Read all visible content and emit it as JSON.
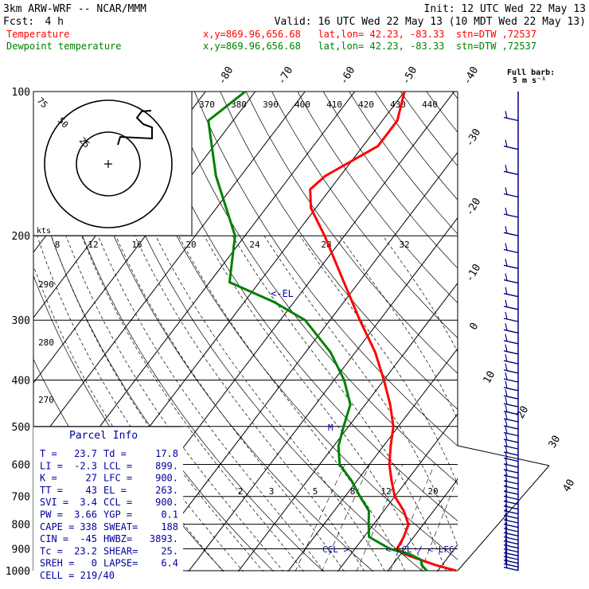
{
  "header": {
    "line1_left": "3km ARW-WRF -- NCAR/MMM",
    "line1_right": "Init: 12 UTC Wed 22 May 13",
    "fcst_label": "Fcst:",
    "fcst_value": "4 h",
    "valid": "Valid: 16 UTC Wed 22 May 13 (10 MDT Wed 22 May 13)"
  },
  "legend": [
    {
      "label": "Temperature",
      "location": "x,y=869.96,656.68   lat,lon= 42.23, -83.33  stn=DTW ,72537",
      "color": "#ff0000"
    },
    {
      "label": "Dewpoint temperature",
      "location": "x,y=869.96,656.68   lat,lon= 42.23, -83.33  stn=DTW ,72537",
      "color": "#008000"
    }
  ],
  "barb_key": {
    "line1": "Full barb:",
    "line2": "5 m s⁻¹"
  },
  "chart_data": {
    "type": "line",
    "title": "Skew-T log-P sounding",
    "pressure_ticks": [
      100,
      200,
      300,
      400,
      500,
      600,
      700,
      800,
      900,
      1000
    ],
    "temp_ticks": [
      -80,
      -70,
      -60,
      -50,
      -40,
      -30,
      -20,
      -10,
      0,
      10,
      20,
      30,
      40
    ],
    "theta_labels_top": [
      "370",
      "380",
      "390",
      "400",
      "410",
      "420",
      "430",
      "440"
    ],
    "theta_labels_left": [
      "290",
      "280",
      "270"
    ],
    "hodograph": {
      "ring_labels": [
        "75",
        "50",
        "25"
      ],
      "units": "kts"
    },
    "mixing_ratio_labels_top": [
      "8",
      "12",
      "16",
      "20",
      "24",
      "28",
      "32"
    ],
    "mixing_ratio_labels_bottom": [
      "2",
      "3",
      "5",
      "8",
      "12",
      "20"
    ],
    "level_markers": {
      "el": "<-EL",
      "m": "M",
      "ccl_lcl_lfc": "CCL >       < LCL / < LFC"
    },
    "series": [
      {
        "name": "Temperature",
        "color": "#ff0000",
        "points": [
          {
            "p": 1000,
            "t": 23.7
          },
          {
            "p": 975,
            "t": 19
          },
          {
            "p": 950,
            "t": 15
          },
          {
            "p": 925,
            "t": 11
          },
          {
            "p": 900,
            "t": 8.5
          },
          {
            "p": 850,
            "t": 8
          },
          {
            "p": 800,
            "t": 7
          },
          {
            "p": 750,
            "t": 4
          },
          {
            "p": 700,
            "t": 0
          },
          {
            "p": 650,
            "t": -3
          },
          {
            "p": 600,
            "t": -6
          },
          {
            "p": 550,
            "t": -8.5
          },
          {
            "p": 500,
            "t": -11
          },
          {
            "p": 450,
            "t": -15
          },
          {
            "p": 400,
            "t": -20
          },
          {
            "p": 350,
            "t": -26
          },
          {
            "p": 300,
            "t": -34
          },
          {
            "p": 250,
            "t": -43
          },
          {
            "p": 200,
            "t": -54
          },
          {
            "p": 175,
            "t": -61
          },
          {
            "p": 160,
            "t": -64
          },
          {
            "p": 150,
            "t": -63
          },
          {
            "p": 130,
            "t": -57
          },
          {
            "p": 115,
            "t": -57
          },
          {
            "p": 100,
            "t": -60
          }
        ]
      },
      {
        "name": "Dewpoint temperature",
        "color": "#008000",
        "points": [
          {
            "p": 1000,
            "t": 17.8
          },
          {
            "p": 975,
            "t": 16
          },
          {
            "p": 950,
            "t": 15
          },
          {
            "p": 925,
            "t": 12
          },
          {
            "p": 900,
            "t": 7
          },
          {
            "p": 850,
            "t": 1
          },
          {
            "p": 800,
            "t": -1
          },
          {
            "p": 750,
            "t": -3
          },
          {
            "p": 700,
            "t": -7
          },
          {
            "p": 650,
            "t": -11
          },
          {
            "p": 600,
            "t": -16
          },
          {
            "p": 550,
            "t": -19
          },
          {
            "p": 500,
            "t": -21
          },
          {
            "p": 450,
            "t": -23
          },
          {
            "p": 400,
            "t": -28
          },
          {
            "p": 350,
            "t": -35
          },
          {
            "p": 300,
            "t": -45
          },
          {
            "p": 275,
            "t": -54
          },
          {
            "p": 250,
            "t": -66
          },
          {
            "p": 200,
            "t": -72
          },
          {
            "p": 150,
            "t": -85
          },
          {
            "p": 115,
            "t": -95
          },
          {
            "p": 100,
            "t": -92
          }
        ]
      }
    ],
    "parcel_info": {
      "title": "Parcel Info",
      "rows": [
        [
          "T  =",
          "23.7",
          "Td  =",
          "17.8"
        ],
        [
          "LI =",
          "-2.3",
          "LCL =",
          "899."
        ],
        [
          "K  =",
          "27",
          "LFC =",
          "900."
        ],
        [
          "TT =",
          "43",
          "EL  =",
          "263."
        ],
        [
          "SVI =",
          "3.4",
          "CCL =",
          "900."
        ],
        [
          "PW =",
          "3.66",
          "YGP =",
          "0.1"
        ],
        [
          "CAPE =",
          "338",
          "SWEAT=",
          "188"
        ],
        [
          "CIN =",
          "-45",
          "HWBZ=",
          "3893."
        ],
        [
          "Tc =",
          "23.2",
          "SHEAR=",
          "25."
        ],
        [
          "SREH =",
          "0",
          "LAPSE=",
          "6.4"
        ],
        [
          "CELL = 219/40",
          "",
          "",
          ""
        ]
      ]
    }
  }
}
